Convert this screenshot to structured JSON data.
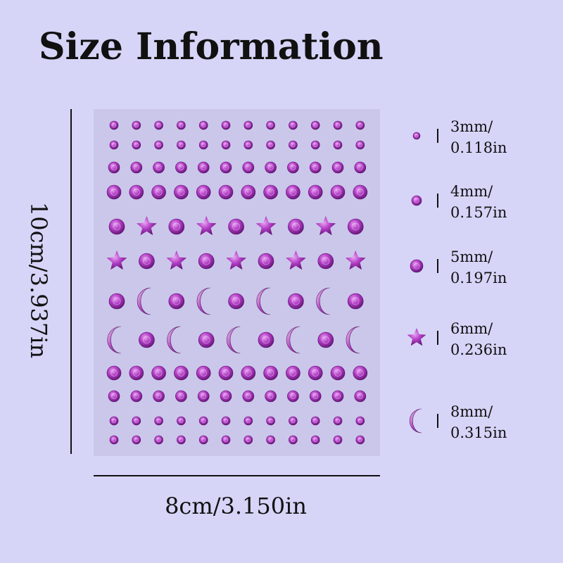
{
  "header": {
    "title": "Size Information"
  },
  "dimensions": {
    "height": "10cm/3.937in",
    "width": "8cm/3.150in"
  },
  "legend": [
    {
      "metric": "3mm/",
      "imperial": "0.118in"
    },
    {
      "metric": "4mm/",
      "imperial": "0.157in"
    },
    {
      "metric": "5mm/",
      "imperial": "0.197in"
    },
    {
      "metric": "6mm/",
      "imperial": "0.236in"
    },
    {
      "metric": "8mm/",
      "imperial": "0.315in"
    }
  ]
}
